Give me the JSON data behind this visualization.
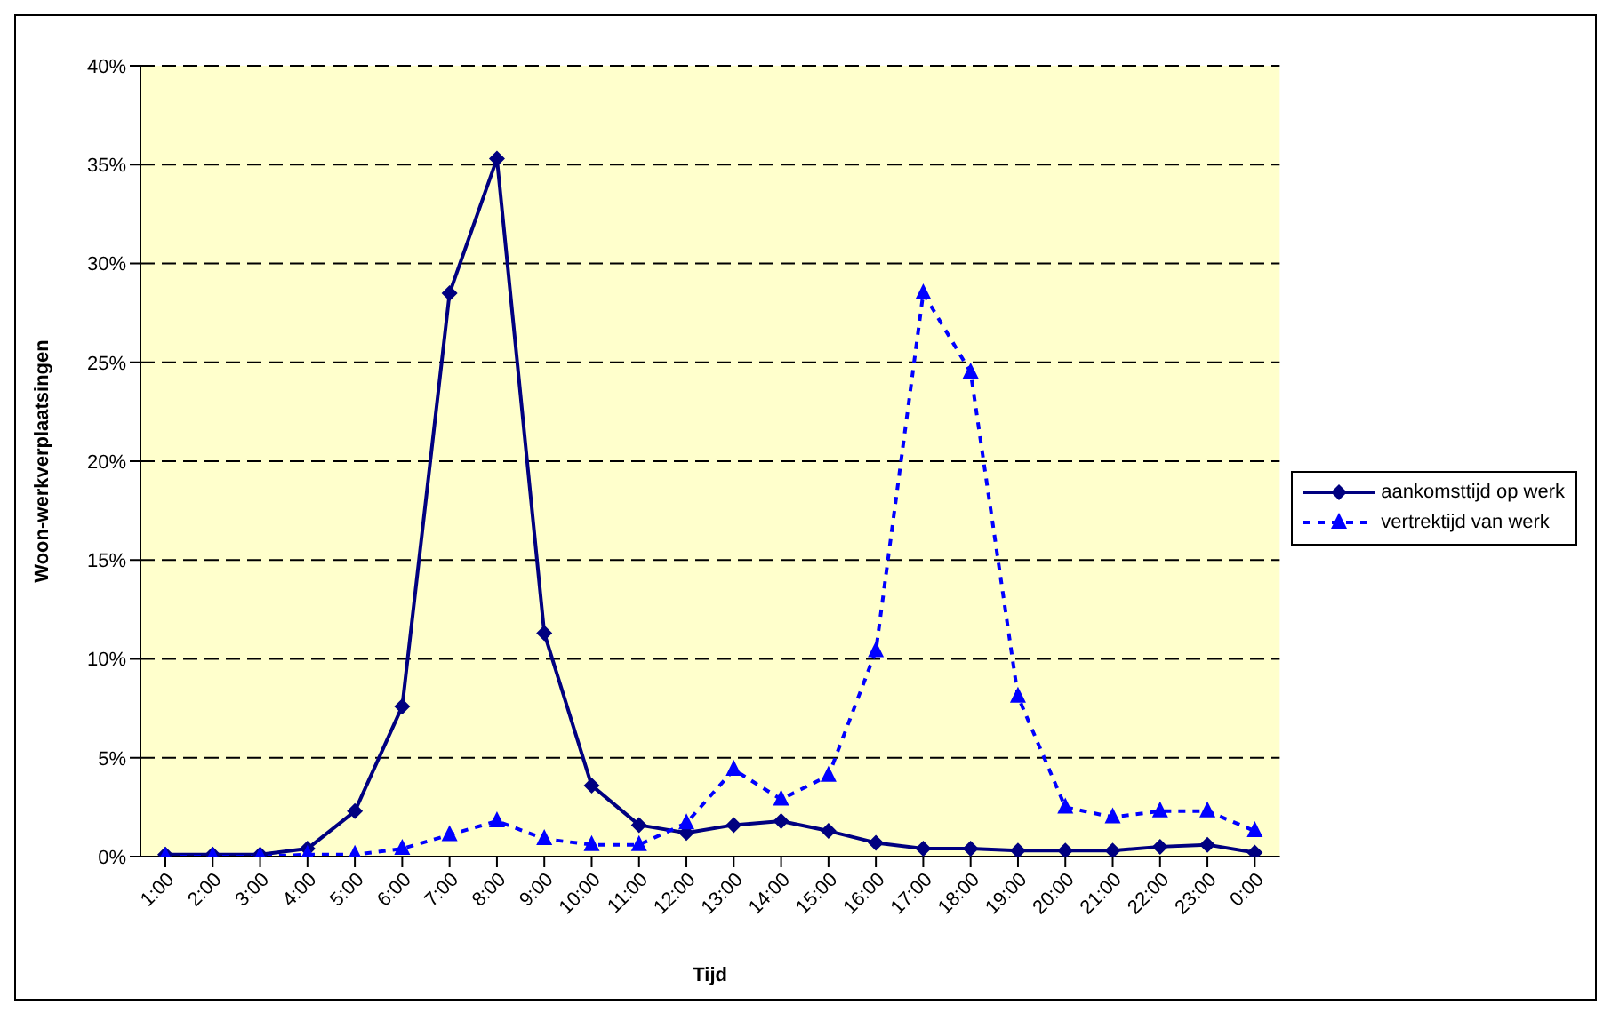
{
  "chart_data": {
    "type": "line",
    "xlabel": "Tijd",
    "ylabel": "Woon-werkverplaatsingen",
    "categories": [
      "1:00",
      "2:00",
      "3:00",
      "4:00",
      "5:00",
      "6:00",
      "7:00",
      "8:00",
      "9:00",
      "10:00",
      "11:00",
      "12:00",
      "13:00",
      "14:00",
      "15:00",
      "16:00",
      "17:00",
      "18:00",
      "19:00",
      "20:00",
      "21:00",
      "22:00",
      "23:00",
      "0:00"
    ],
    "series": [
      {
        "name": "aankomsttijd op werk",
        "color": "#000080",
        "marker": "diamond",
        "line_style": "solid",
        "values": [
          0.1,
          0.1,
          0.1,
          0.4,
          2.3,
          7.6,
          28.5,
          35.3,
          11.3,
          3.6,
          1.6,
          1.2,
          1.6,
          1.8,
          1.3,
          0.7,
          0.4,
          0.4,
          0.3,
          0.3,
          0.3,
          0.5,
          0.6,
          0.2
        ]
      },
      {
        "name": "vertrektijd van werk",
        "color": "#0000ff",
        "marker": "triangle",
        "line_style": "dashed",
        "values": [
          0,
          0,
          0,
          0.1,
          0.1,
          0.4,
          1.1,
          1.8,
          0.9,
          0.6,
          0.6,
          1.7,
          4.4,
          2.9,
          4.1,
          10.4,
          28.5,
          24.5,
          8.1,
          2.5,
          2.0,
          2.3,
          2.3,
          1.3
        ]
      }
    ],
    "ylim": [
      0,
      40
    ],
    "yticks": [
      {
        "value": 0,
        "label": "0%"
      },
      {
        "value": 5,
        "label": "5%"
      },
      {
        "value": 10,
        "label": "10%"
      },
      {
        "value": 15,
        "label": "15%"
      },
      {
        "value": 20,
        "label": "20%"
      },
      {
        "value": 25,
        "label": "25%"
      },
      {
        "value": 30,
        "label": "30%"
      },
      {
        "value": 35,
        "label": "35%"
      },
      {
        "value": 40,
        "label": "40%"
      }
    ],
    "grid": "y",
    "legend": "right"
  }
}
